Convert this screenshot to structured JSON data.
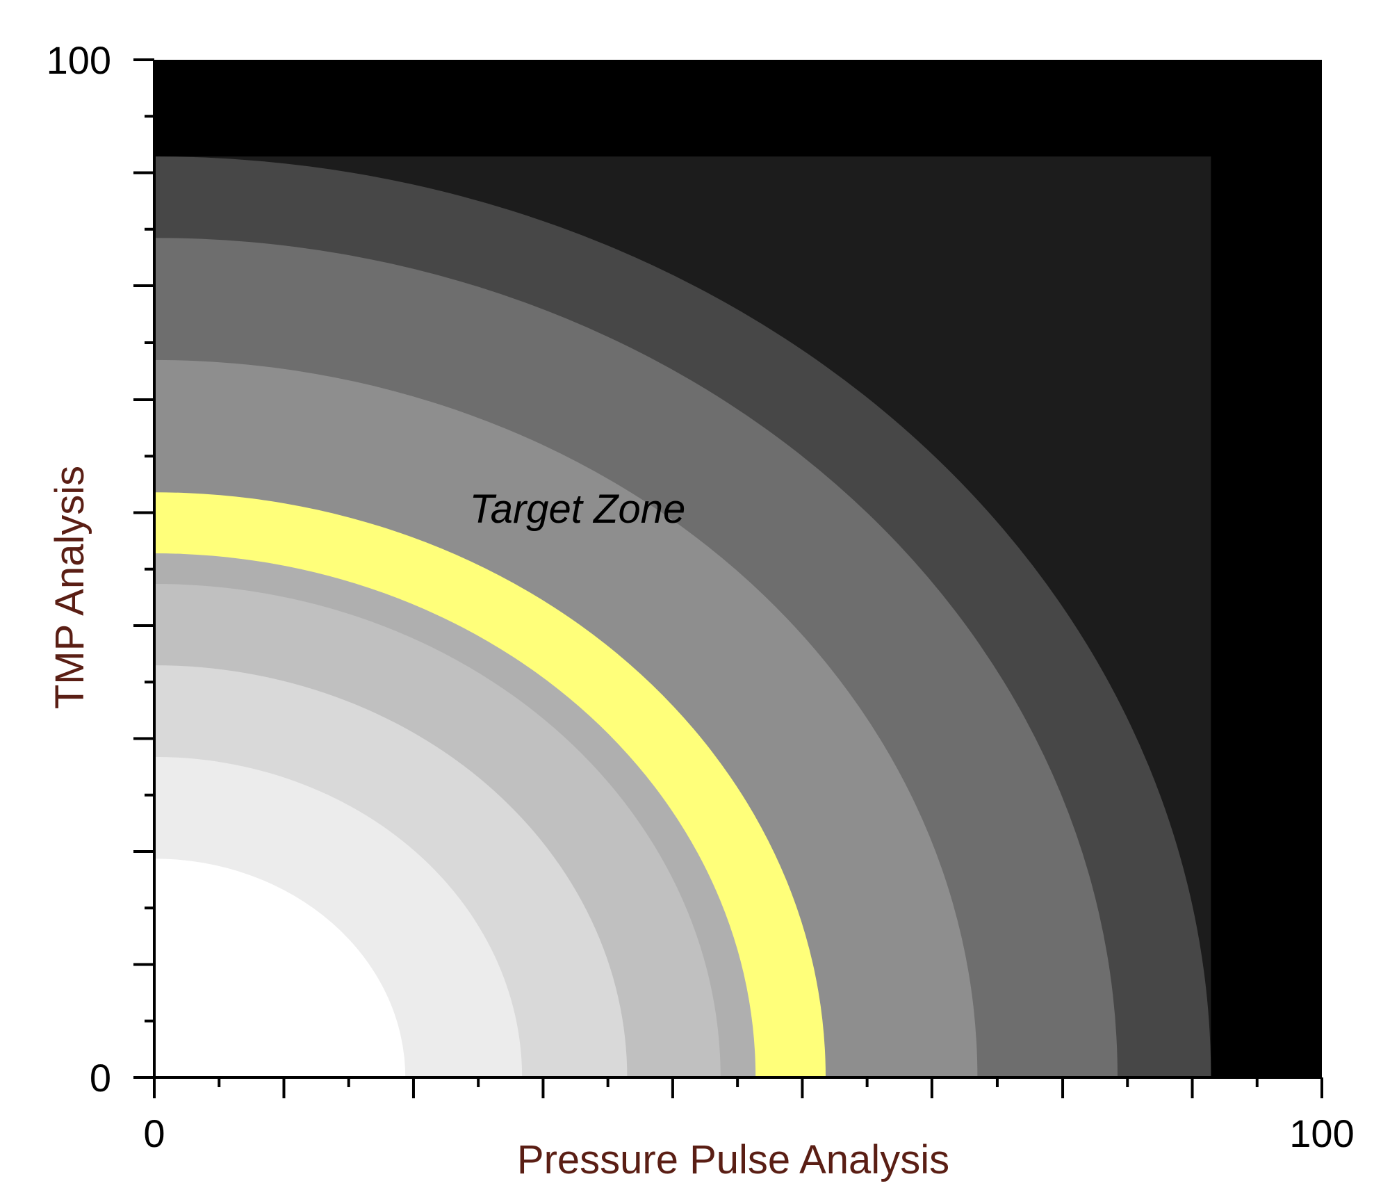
{
  "chart_data": {
    "type": "heatmap",
    "title": "",
    "xlabel": "Pressure Pulse Analysis",
    "ylabel": "TMP Analysis",
    "xlim": [
      0,
      100
    ],
    "ylim": [
      0,
      100
    ],
    "x_tick_labels": [
      {
        "value": 0,
        "label": "0"
      },
      {
        "value": 100,
        "label": "100"
      }
    ],
    "y_tick_labels": [
      {
        "value": 0,
        "label": "0"
      },
      {
        "value": 100,
        "label": "100"
      }
    ],
    "x_major_ticks": [
      0,
      11.1,
      22.2,
      33.3,
      44.4,
      55.5,
      66.6,
      77.8,
      88.9,
      100
    ],
    "x_minor_ticks": [
      5.55,
      16.65,
      27.75,
      38.85,
      49.95,
      61.05,
      72.2,
      83.35,
      94.45
    ],
    "y_major_ticks": [
      0,
      11.1,
      22.2,
      33.3,
      44.4,
      55.5,
      66.6,
      77.8,
      88.9,
      100
    ],
    "y_minor_ticks": [
      5.55,
      16.65,
      27.75,
      38.85,
      49.95,
      61.05,
      72.2,
      83.35,
      94.45
    ],
    "grid": false,
    "background_color": "#000000",
    "bands": [
      {
        "level": 1,
        "color": "#ffffff",
        "x_intercept": 21.5,
        "y_intercept": 21.5
      },
      {
        "level": 2,
        "color": "#ececec",
        "x_intercept": 31.5,
        "y_intercept": 31.5
      },
      {
        "level": 3,
        "color": "#d9d9d9",
        "x_intercept": 40.5,
        "y_intercept": 40.5
      },
      {
        "level": 4,
        "color": "#c0c0c0",
        "x_intercept": 48.5,
        "y_intercept": 48.5
      },
      {
        "level": 5,
        "color": "#afafaf",
        "x_intercept": 51.5,
        "y_intercept": 51.5
      },
      {
        "level": 6,
        "color": "#ffff7a",
        "x_intercept": 57.5,
        "y_intercept": 57.5,
        "label": "Target Zone"
      },
      {
        "level": 7,
        "color": "#8e8e8e",
        "x_intercept": 70.5,
        "y_intercept": 70.5
      },
      {
        "level": 8,
        "color": "#6e6e6e",
        "x_intercept": 82.5,
        "y_intercept": 82.5
      },
      {
        "level": 9,
        "color": "#474747",
        "x_intercept": 90.5,
        "y_intercept": 90.5
      },
      {
        "level": 10,
        "color": "#1c1c1c",
        "x_intercept": 90.5,
        "y_intercept": 90.5
      }
    ],
    "annotations": [
      {
        "text": "Target Zone",
        "x": 27,
        "y": 54.5
      }
    ]
  }
}
